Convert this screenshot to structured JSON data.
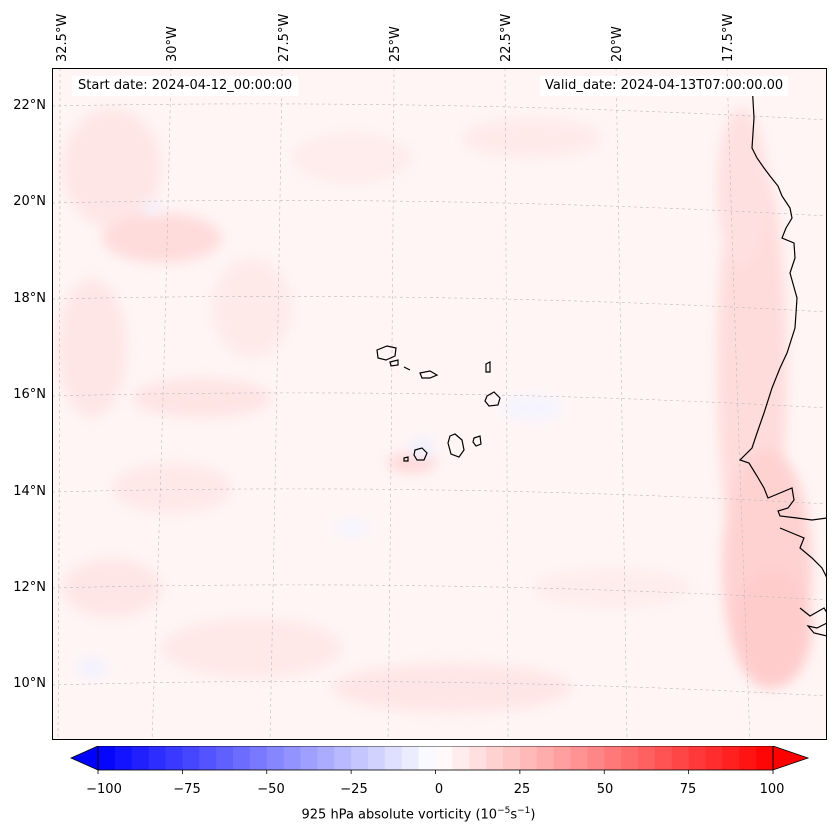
{
  "header": {
    "start_date": "Start date: 2024-04-12_00:00:00",
    "valid_date": "Valid_date: 2024-04-13T07:00:00.00"
  },
  "longitude_labels": [
    "32.5°W",
    "30°W",
    "27.5°W",
    "25°W",
    "22.5°W",
    "20°W",
    "17.5°W"
  ],
  "latitude_labels": [
    "22°N",
    "20°N",
    "18°N",
    "16°N",
    "14°N",
    "12°N",
    "10°N"
  ],
  "colorbar": {
    "ticks": [
      "−100",
      "−75",
      "−50",
      "−25",
      "0",
      "25",
      "50",
      "75",
      "100"
    ],
    "min": -100,
    "max": 100,
    "label_prefix": "925 hPa absolute vorticity (10",
    "label_exp1": "−5",
    "label_mid": "s",
    "label_exp2": "−1",
    "label_suffix": ")",
    "low_color": "#0000ff",
    "mid_color": "#ffffff",
    "high_color": "#ff0000",
    "extend": "both"
  },
  "map": {
    "region_lon": [
      -33,
      -16
    ],
    "region_lat": [
      9,
      23
    ],
    "coastline_color": "#000000",
    "gridline_style": "dashed"
  }
}
